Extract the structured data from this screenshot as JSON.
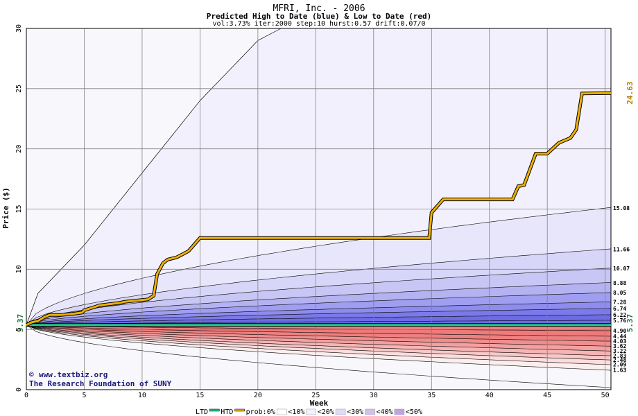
{
  "chart_data": {
    "type": "area",
    "title": "MFRI, Inc. - 2006",
    "subtitle": "Predicted High to Date (blue) &  Low to Date (red)",
    "params": "vol:3.73% iter:2000 step:10 hurst:0.57 drift:0.07/0",
    "xlabel": "Week",
    "ylabel": "Price ($)",
    "xlim": [
      0,
      50.5
    ],
    "ylim": [
      0,
      30
    ],
    "xticks": [
      0,
      5,
      10,
      15,
      20,
      25,
      30,
      35,
      40,
      45,
      50
    ],
    "yticks": [
      0,
      5,
      10,
      15,
      20,
      25,
      30
    ],
    "grid": true,
    "start_price": 5.37,
    "start_label": "5.37",
    "end_label": "5.37",
    "last_high_label": "24.63",
    "colors": {
      "high_band": "#4040e0",
      "low_band": "#e04040",
      "actual_high": "#f0b000",
      "actual_low": "#20c890",
      "bg": "#f8f8fc"
    },
    "high_envelope_labels": [
      "15.08",
      "11.66",
      "10.07",
      "8.88",
      "8.05",
      "7.28",
      "6.74",
      "6.22",
      "5.76"
    ],
    "low_envelope_labels": [
      "4.90",
      "4.44",
      "4.03",
      "3.62",
      "3.22",
      "2.83",
      "2.48",
      "2.09",
      "1.63"
    ],
    "high_envelope_end": [
      15.08,
      11.66,
      10.07,
      8.88,
      8.05,
      7.28,
      6.74,
      6.22,
      5.76
    ],
    "low_envelope_end": [
      4.9,
      4.44,
      4.03,
      3.62,
      3.22,
      2.83,
      2.48,
      2.09,
      1.63
    ],
    "max_high_curve": {
      "x": [
        0,
        1,
        5,
        10,
        15,
        20,
        22
      ],
      "y": [
        5.37,
        8,
        12,
        18,
        24,
        29,
        30
      ]
    },
    "actual_high_to_date": {
      "x": [
        0,
        0.5,
        1,
        1.5,
        2,
        3,
        4,
        4.8,
        5,
        6,
        6.3,
        8,
        8.5,
        10.5,
        11,
        11.3,
        11.8,
        12.2,
        13,
        14,
        15,
        34.8,
        35,
        36,
        42,
        42.5,
        43,
        44,
        45,
        46,
        47,
        47.5,
        48,
        50.5
      ],
      "y": [
        5.37,
        5.6,
        5.7,
        6.0,
        6.2,
        6.2,
        6.3,
        6.4,
        6.6,
        6.9,
        7.0,
        7.2,
        7.3,
        7.5,
        7.8,
        9.6,
        10.5,
        10.8,
        11.0,
        11.5,
        12.6,
        12.6,
        14.7,
        15.8,
        15.8,
        16.9,
        17.0,
        19.6,
        19.6,
        20.5,
        20.9,
        21.6,
        24.6,
        24.63
      ]
    },
    "actual_low_to_date": {
      "x": [
        0,
        50.5
      ],
      "y": [
        5.37,
        5.37
      ]
    }
  },
  "watermark": {
    "site": "www.textbiz.org",
    "org": "The Research Foundation of SUNY"
  },
  "legend": {
    "items": [
      "LTD",
      "HTD",
      "prob:0%",
      "<10%",
      "<20%",
      "<30%",
      "<40%",
      "<50%"
    ],
    "colors": [
      "#20c890",
      "#f0b000",
      "#ffffff",
      "#f6f0ff",
      "#e0dcf8",
      "#d0c0f0",
      "#c4a0e8",
      "#b090e0"
    ]
  }
}
